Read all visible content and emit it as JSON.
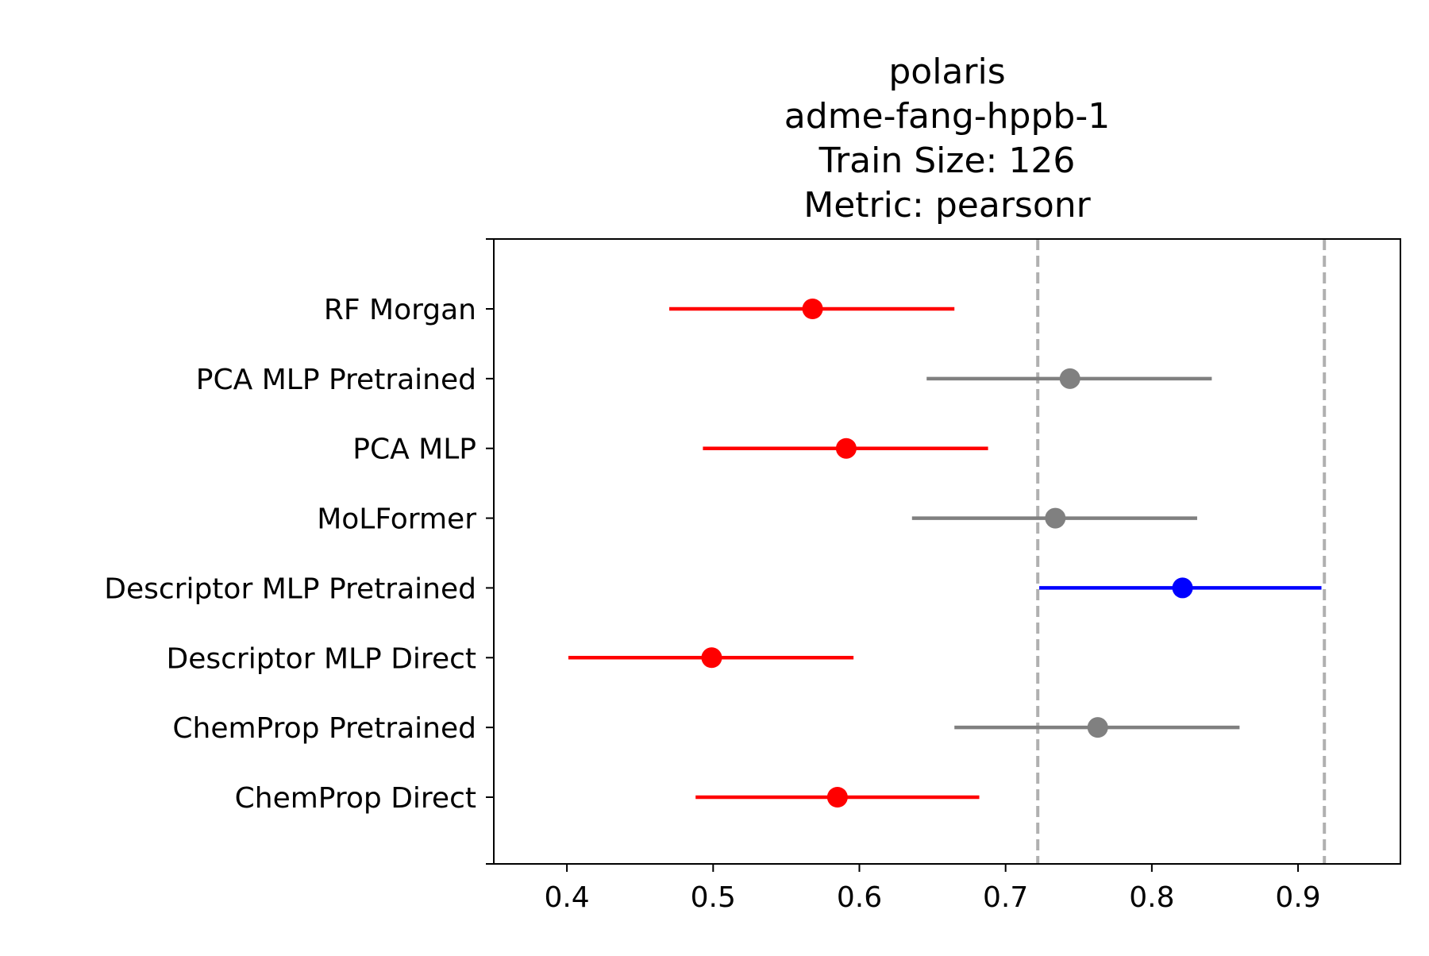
{
  "chart_data": {
    "type": "forest",
    "title_lines": [
      "polaris",
      "adme-fang-hppb-1",
      "Train Size: 126",
      "Metric: pearsonr"
    ],
    "xlabel": "",
    "ylabel": "",
    "xlim": [
      0.35,
      0.97
    ],
    "x_ticks": [
      0.4,
      0.5,
      0.6,
      0.7,
      0.8,
      0.9
    ],
    "x_tick_labels": [
      "0.4",
      "0.5",
      "0.6",
      "0.7",
      "0.8",
      "0.9"
    ],
    "grid": false,
    "reference_lines": [
      0.722,
      0.918
    ],
    "colors": {
      "red": "#ff0000",
      "gray": "#808080",
      "blue": "#0000ff",
      "reference": "#b0b0b0"
    },
    "rows": [
      {
        "label": "RF Morgan",
        "value": 0.568,
        "low": 0.47,
        "high": 0.665,
        "color": "red"
      },
      {
        "label": "PCA MLP Pretrained",
        "value": 0.744,
        "low": 0.646,
        "high": 0.841,
        "color": "gray"
      },
      {
        "label": "PCA MLP",
        "value": 0.591,
        "low": 0.493,
        "high": 0.688,
        "color": "red"
      },
      {
        "label": "MoLFormer",
        "value": 0.734,
        "low": 0.636,
        "high": 0.831,
        "color": "gray"
      },
      {
        "label": "Descriptor MLP Pretrained",
        "value": 0.821,
        "low": 0.723,
        "high": 0.916,
        "color": "blue"
      },
      {
        "label": "Descriptor MLP Direct",
        "value": 0.499,
        "low": 0.401,
        "high": 0.596,
        "color": "red"
      },
      {
        "label": "ChemProp Pretrained",
        "value": 0.763,
        "low": 0.665,
        "high": 0.86,
        "color": "gray"
      },
      {
        "label": "ChemProp Direct",
        "value": 0.585,
        "low": 0.488,
        "high": 0.682,
        "color": "red"
      }
    ]
  }
}
